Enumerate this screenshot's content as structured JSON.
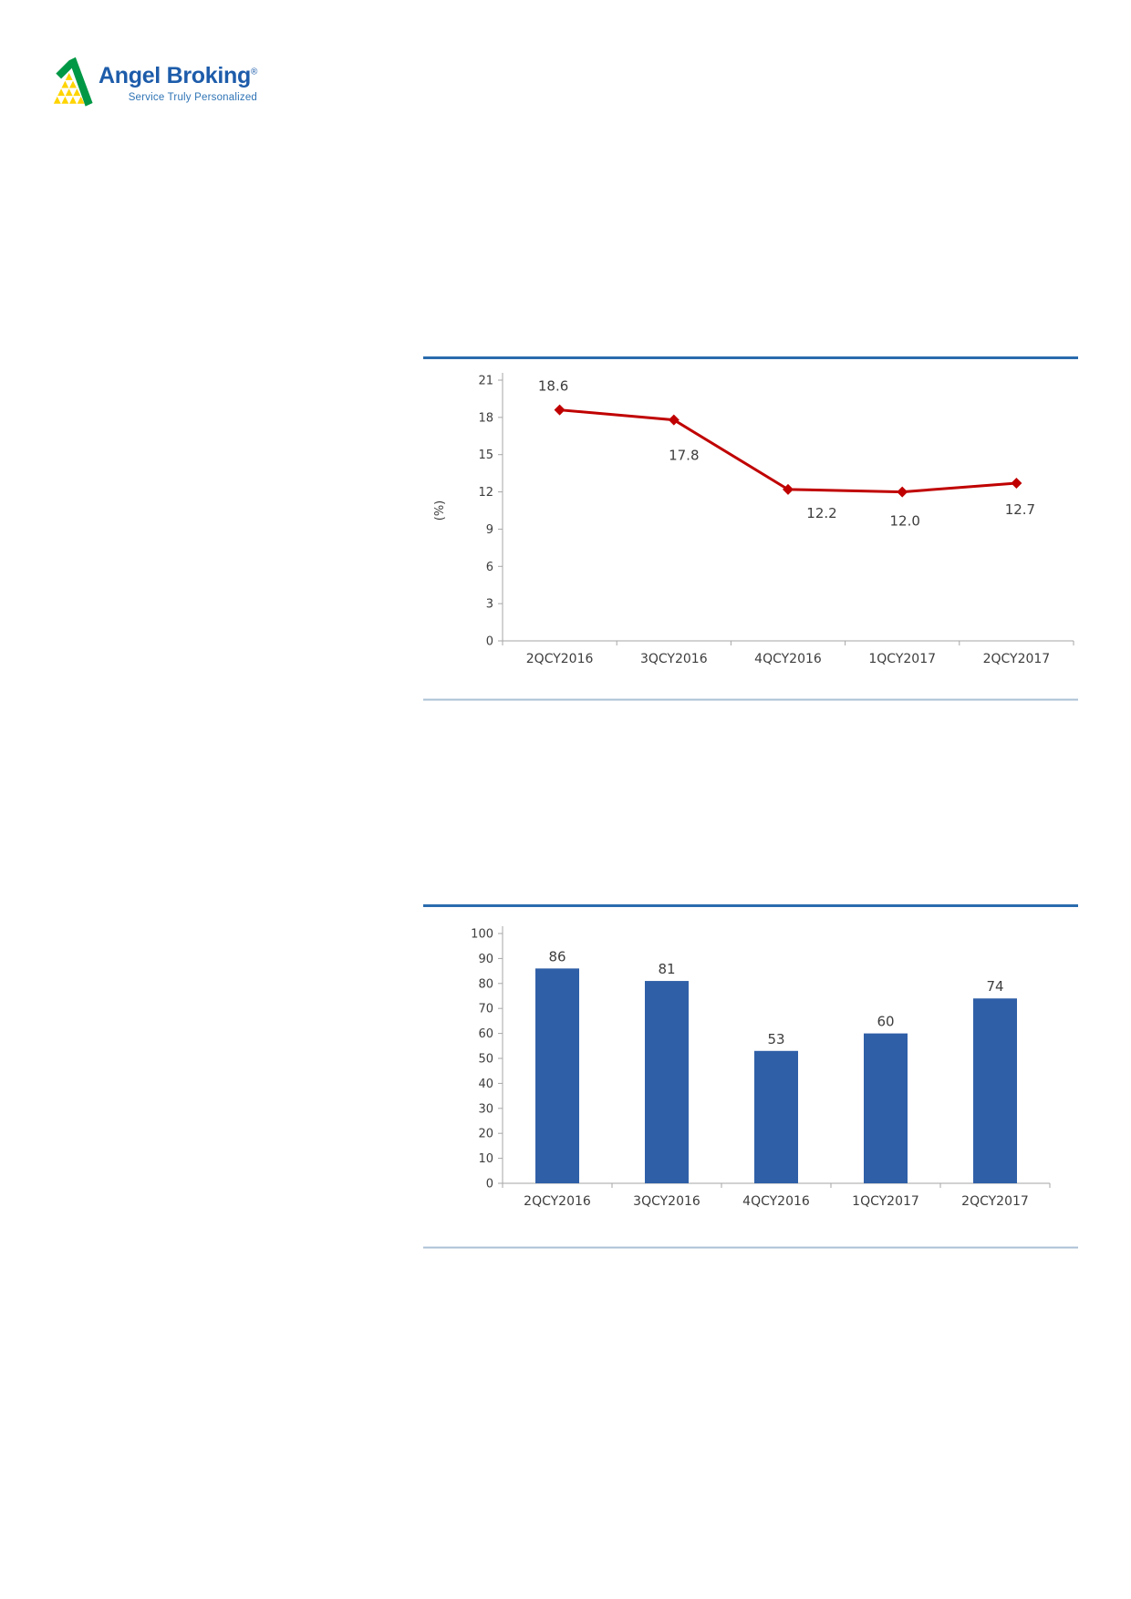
{
  "logo": {
    "brand": "Angel Broking",
    "registered": "®",
    "tagline": "Service Truly Personalized",
    "brand_color": "#1d5caa",
    "tagline_color": "#2f74b5",
    "mark_green": "#009845",
    "mark_yellow": "#ffd400"
  },
  "chart_data": [
    {
      "type": "line",
      "title": "",
      "categories": [
        "2QCY2016",
        "3QCY2016",
        "4QCY2016",
        "1QCY2017",
        "2QCY2017"
      ],
      "values": [
        18.6,
        17.8,
        12.2,
        12.0,
        12.7
      ],
      "data_labels": [
        "18.6",
        "17.8",
        "12.2",
        "12.0",
        "12.7"
      ],
      "xlabel": "",
      "ylabel": "(%)",
      "ylim": [
        0,
        21
      ],
      "yticks": [
        21,
        18,
        15,
        12,
        9,
        6,
        3,
        0
      ],
      "grid": false,
      "legend_position": "none",
      "marker": "diamond",
      "line_color": "#c00000",
      "style": {
        "top_rule": "#2a6bad",
        "bottom_rule": "#abc0d6",
        "axis": "#a6a6a6",
        "text": "#3d3d3d"
      }
    },
    {
      "type": "bar",
      "title": "",
      "categories": [
        "2QCY2016",
        "3QCY2016",
        "4QCY2016",
        "1QCY2017",
        "2QCY2017"
      ],
      "values": [
        86,
        81,
        53,
        60,
        74
      ],
      "data_labels": [
        "86",
        "81",
        "53",
        "60",
        "74"
      ],
      "xlabel": "",
      "ylabel": "",
      "ylim": [
        0,
        100
      ],
      "yticks": [
        100,
        90,
        80,
        70,
        60,
        50,
        40,
        30,
        20,
        10,
        0
      ],
      "grid": false,
      "legend_position": "none",
      "bar_color": "#2f5fa7",
      "style": {
        "top_rule": "#2a6bad",
        "bottom_rule": "#abc0d6",
        "axis": "#a6a6a6",
        "text": "#3d3d3d"
      }
    }
  ]
}
